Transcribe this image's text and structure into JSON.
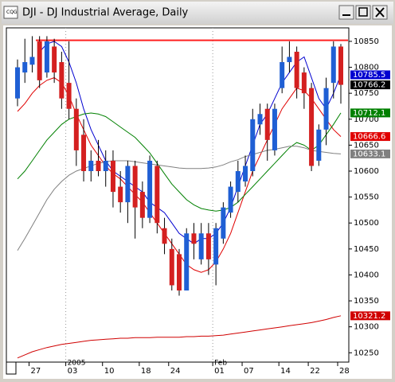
{
  "chart_data": {
    "type": "candlestick",
    "title": "DJI - DJ Industrial Average, Daily",
    "categories": [
      null,
      null,
      "27",
      null,
      null,
      null,
      null,
      "03",
      null,
      null,
      null,
      null,
      "10",
      null,
      null,
      null,
      null,
      "18",
      null,
      null,
      null,
      "24",
      null,
      null,
      null,
      null,
      null,
      "01",
      null,
      null,
      null,
      "07",
      null,
      null,
      null,
      null,
      "14",
      null,
      null,
      null,
      "22",
      null,
      null,
      null,
      "28"
    ],
    "category_groups": [
      null,
      null,
      null,
      null,
      null,
      null,
      null,
      "2005",
      null,
      null,
      null,
      null,
      null,
      null,
      null,
      null,
      null,
      null,
      null,
      null,
      null,
      null,
      null,
      null,
      null,
      null,
      null,
      "Feb",
      null,
      null,
      null,
      null,
      null,
      null,
      null,
      null,
      null,
      null,
      null,
      null,
      null,
      null,
      null,
      null,
      null
    ],
    "open": [
      10740,
      10790,
      10805,
      10850,
      10790,
      10840,
      10810,
      10770,
      10720,
      10670,
      10600,
      10620,
      10600,
      10620,
      10570,
      10540,
      10610,
      10560,
      10510,
      10610,
      10490,
      10450,
      10440,
      10370,
      10480,
      10430,
      10480,
      10420,
      10470,
      10520,
      10560,
      10580,
      10600,
      10690,
      10720,
      10640,
      10760,
      10810,
      10830,
      10790,
      10760,
      10620,
      10680,
      10770,
      10840
    ],
    "high": [
      10815,
      10855,
      10860,
      10860,
      10860,
      10855,
      10830,
      10850,
      10740,
      10700,
      10640,
      10660,
      10640,
      10640,
      10600,
      10620,
      10620,
      10580,
      10630,
      10620,
      10510,
      10470,
      10450,
      10490,
      10500,
      10500,
      10500,
      10500,
      10540,
      10580,
      10620,
      10630,
      10720,
      10730,
      10730,
      10730,
      10840,
      10850,
      10840,
      10800,
      10770,
      10690,
      10780,
      10850,
      10845
    ],
    "low": [
      10725,
      10770,
      10790,
      10760,
      10780,
      10770,
      10720,
      10700,
      10610,
      10580,
      10580,
      10590,
      10570,
      10530,
      10520,
      10500,
      10470,
      10490,
      10500,
      10480,
      10440,
      10370,
      10360,
      10370,
      10430,
      10420,
      10400,
      10380,
      10460,
      10510,
      10540,
      10570,
      10590,
      10670,
      10620,
      10630,
      10750,
      10790,
      10740,
      10720,
      10600,
      10610,
      10650,
      10740,
      10730
    ],
    "close": [
      10800,
      10810,
      10820,
      10775,
      10850,
      10790,
      10740,
      10720,
      10640,
      10600,
      10620,
      10600,
      10620,
      10560,
      10540,
      10610,
      10530,
      10510,
      10620,
      10500,
      10460,
      10380,
      10370,
      10480,
      10460,
      10480,
      10430,
      10490,
      10530,
      10570,
      10600,
      10610,
      10700,
      10710,
      10660,
      10720,
      10810,
      10820,
      10760,
      10750,
      10610,
      10680,
      10760,
      10840,
      10766.2
    ],
    "up_color": "#1f5fd4",
    "down_color": "#d42020",
    "series": [
      {
        "color": "#0000d0",
        "values": [
          null,
          null,
          null,
          10830,
          10845,
          10850,
          10840,
          10810,
          10770,
          10720,
          10680,
          10650,
          10620,
          10600,
          10590,
          10580,
          10570,
          10560,
          10540,
          10530,
          10520,
          10500,
          10480,
          10470,
          10460,
          10470,
          10470,
          10480,
          10500,
          10530,
          10570,
          10610,
          10650,
          10690,
          10710,
          10740,
          10770,
          10790,
          10810,
          10820,
          10780,
          10740,
          10720,
          10750,
          10785.5
        ]
      },
      {
        "color": "#e00000",
        "values": [
          10715,
          10730,
          10750,
          10765,
          10775,
          10780,
          10770,
          10745,
          10710,
          10680,
          10650,
          10630,
          10610,
          10595,
          10585,
          10570,
          10555,
          10540,
          10520,
          10500,
          10480,
          10460,
          10440,
          10420,
          10410,
          10405,
          10410,
          10425,
          10450,
          10480,
          10520,
          10560,
          10600,
          10630,
          10660,
          10690,
          10720,
          10740,
          10760,
          10755,
          10740,
          10720,
          10700,
          10680,
          10666.6
        ]
      },
      {
        "color": "#008000",
        "values": [
          10585,
          10600,
          10620,
          10640,
          10660,
          10675,
          10690,
          10700,
          10705,
          10710,
          10712,
          10710,
          10705,
          10695,
          10685,
          10675,
          10665,
          10650,
          10635,
          10615,
          10595,
          10575,
          10560,
          10545,
          10535,
          10528,
          10525,
          10523,
          10525,
          10530,
          10540,
          10555,
          10570,
          10585,
          10600,
          10615,
          10630,
          10645,
          10655,
          10650,
          10640,
          10650,
          10670,
          10690,
          10712.1
        ]
      },
      {
        "color": "#808080",
        "values": [
          10447,
          10470,
          10495,
          10520,
          10545,
          10565,
          10580,
          10592,
          10600,
          10605,
          10610,
          10615,
          10618,
          10620,
          10620,
          10620,
          10618,
          10616,
          10614,
          10612,
          10610,
          10608,
          10606,
          10605,
          10605,
          10605,
          10606,
          10608,
          10612,
          10618,
          10622,
          10628,
          10632,
          10636,
          10640,
          10642,
          10645,
          10648,
          10648,
          10645,
          10640,
          10638,
          10636,
          10634,
          10633.1
        ]
      },
      {
        "color": "#d00000",
        "values": [
          10240,
          10246,
          10252,
          10256,
          10260,
          10263,
          10266,
          10268,
          10270,
          10272,
          10274,
          10275,
          10276,
          10277,
          10278,
          10278,
          10279,
          10279,
          10279,
          10280,
          10280,
          10280,
          10280,
          10281,
          10281,
          10282,
          10282,
          10283,
          10284,
          10286,
          10288,
          10290,
          10292,
          10294,
          10296,
          10298,
          10300,
          10302,
          10304,
          10306,
          10308,
          10311,
          10314,
          10318,
          10321.2
        ]
      }
    ],
    "horizontal_line": 10852,
    "horizontal_line_color": "#ff2020",
    "ylim": [
      10232,
      10876
    ],
    "yticks": [
      10250,
      10300,
      10350,
      10400,
      10450,
      10500,
      10550,
      10600,
      10650,
      10700,
      10750,
      10800,
      10850
    ]
  }
}
